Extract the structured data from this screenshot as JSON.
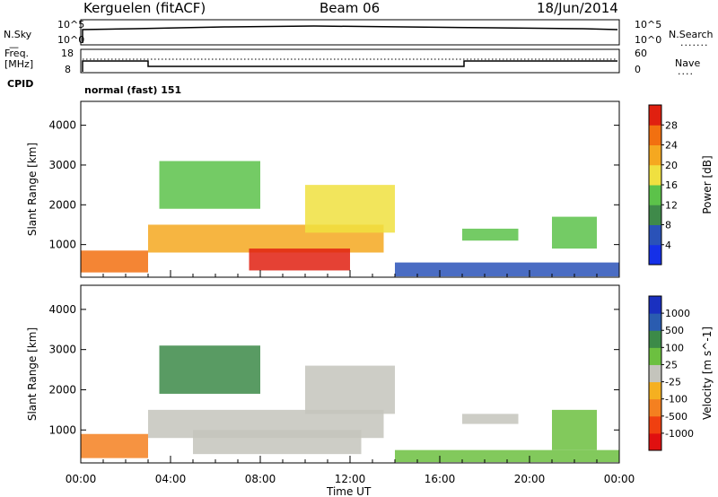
{
  "header": {
    "station": "Kerguelen (fitACF)",
    "beam": "Beam 06",
    "date": "18/Jun/2014"
  },
  "noise_panel": {
    "left_label": "N.Sky",
    "left_ticks": [
      "10^5",
      "10^0"
    ],
    "right_label": "N.Search",
    "right_ticks": [
      "10^5",
      "10^0"
    ]
  },
  "freq_panel": {
    "left_label_line1": "Freq.",
    "left_label_line2": "[MHz]",
    "left_ticks": [
      "18",
      "8"
    ],
    "right_label": "Nave",
    "right_ticks": [
      "60",
      "0"
    ],
    "cpid_label": "CPID",
    "cpid_text": "normal (fast) 151"
  },
  "x_axis": {
    "ticks": [
      "00:00",
      "04:00",
      "08:00",
      "12:00",
      "16:00",
      "20:00",
      "00:00"
    ],
    "label": "Time UT"
  },
  "colors": {
    "power": [
      "#1530e8",
      "#2a52b8",
      "#3f8a4a",
      "#5cc24a",
      "#f0e040",
      "#f5a820",
      "#f27010",
      "#e02010"
    ],
    "velocity": [
      "#e01010",
      "#f04010",
      "#f48020",
      "#f5b020",
      "#c4c4bc",
      "#6cc040",
      "#3c8a48",
      "#2a5cb0",
      "#1a30c0"
    ]
  },
  "chart_data": [
    {
      "type": "heatmap",
      "title": "",
      "xlabel": "Time UT",
      "ylabel": "Slant Range [km]",
      "xlim": [
        "00:00",
        "24:00"
      ],
      "ylim": [
        180,
        4600
      ],
      "yticks": [
        "1000",
        "2000",
        "3000",
        "4000"
      ],
      "colorbar_label": "Power [dB]",
      "colorbar_ticks": [
        "28",
        "24",
        "20",
        "16",
        "12",
        "8",
        "4"
      ],
      "regions": [
        {
          "t0": 0.0,
          "t1": 3.0,
          "r0": 300,
          "r1": 850,
          "level": 6
        },
        {
          "t0": 3.0,
          "t1": 13.5,
          "r0": 800,
          "r1": 1500,
          "level": 5
        },
        {
          "t0": 7.5,
          "t1": 12.0,
          "r0": 350,
          "r1": 900,
          "level": 7
        },
        {
          "t0": 3.5,
          "t1": 8.0,
          "r0": 1900,
          "r1": 3100,
          "level": 3
        },
        {
          "t0": 10.0,
          "t1": 14.0,
          "r0": 1300,
          "r1": 2500,
          "level": 4
        },
        {
          "t0": 17.0,
          "t1": 19.5,
          "r0": 1100,
          "r1": 1400,
          "level": 3
        },
        {
          "t0": 21.0,
          "t1": 23.0,
          "r0": 900,
          "r1": 1700,
          "level": 3
        },
        {
          "t0": 14.0,
          "t1": 24.0,
          "r0": 200,
          "r1": 550,
          "level": 1
        }
      ]
    },
    {
      "type": "heatmap",
      "title": "",
      "xlabel": "Time UT",
      "ylabel": "Slant Range [km]",
      "xlim": [
        "00:00",
        "24:00"
      ],
      "ylim": [
        180,
        4600
      ],
      "yticks": [
        "1000",
        "2000",
        "3000",
        "4000"
      ],
      "colorbar_label": "Velocity [m s^-1]",
      "colorbar_ticks": [
        "1000",
        "500",
        "100",
        "25",
        "-25",
        "-100",
        "-500",
        "-1000"
      ],
      "regions": [
        {
          "t0": 0.0,
          "t1": 3.0,
          "r0": 300,
          "r1": 900,
          "level": 2
        },
        {
          "t0": 3.0,
          "t1": 13.5,
          "r0": 800,
          "r1": 1500,
          "level": 4
        },
        {
          "t0": 5.0,
          "t1": 12.5,
          "r0": 400,
          "r1": 1000,
          "level": 4
        },
        {
          "t0": 3.5,
          "t1": 8.0,
          "r0": 1900,
          "r1": 3100,
          "level": 6
        },
        {
          "t0": 10.0,
          "t1": 14.0,
          "r0": 1400,
          "r1": 2600,
          "level": 4
        },
        {
          "t0": 17.0,
          "t1": 19.5,
          "r0": 1150,
          "r1": 1400,
          "level": 4
        },
        {
          "t0": 21.0,
          "t1": 23.0,
          "r0": 500,
          "r1": 1500,
          "level": 5
        },
        {
          "t0": 14.0,
          "t1": 24.0,
          "r0": 200,
          "r1": 500,
          "level": 5
        }
      ]
    }
  ]
}
